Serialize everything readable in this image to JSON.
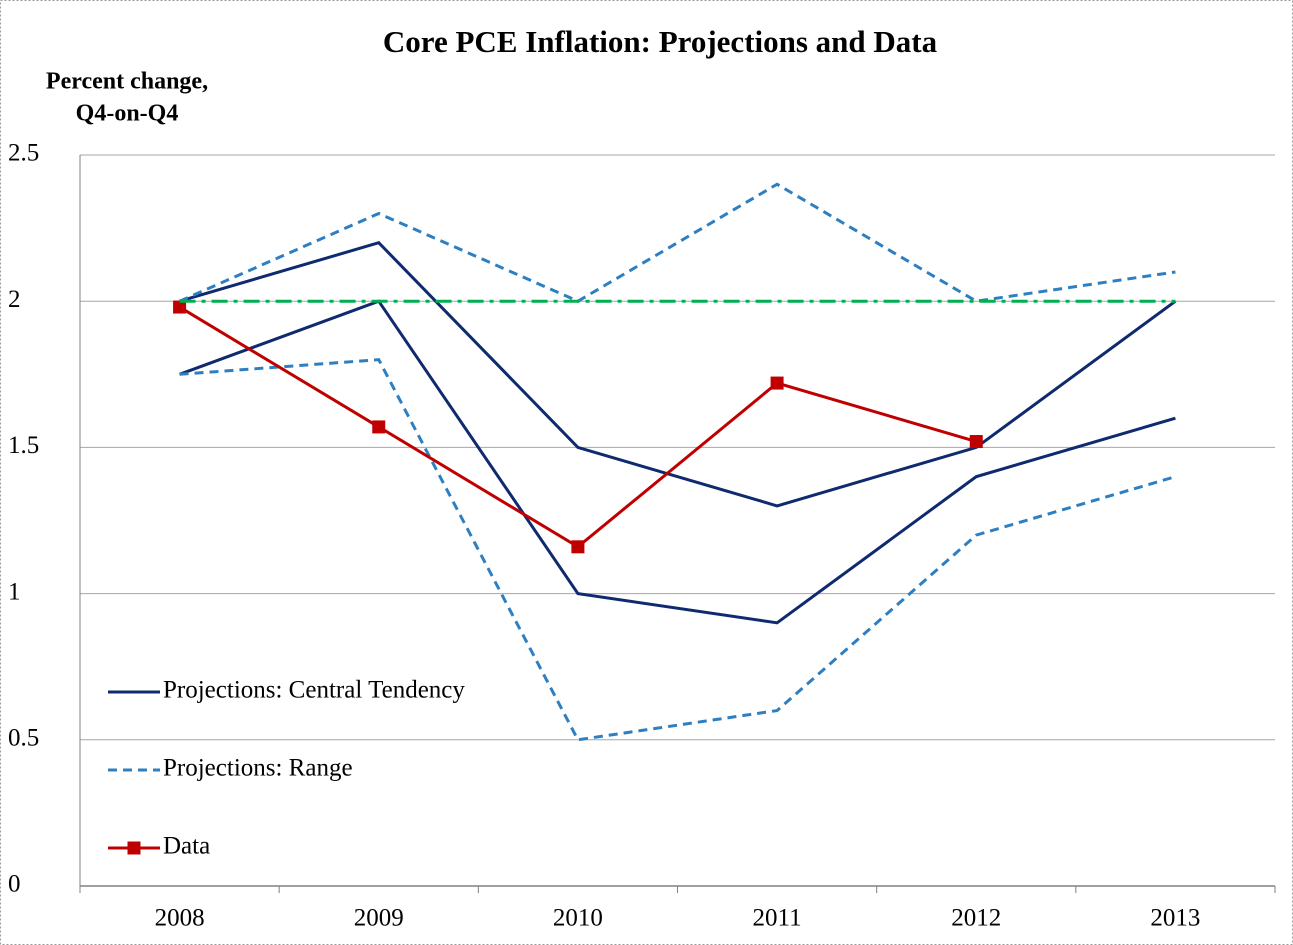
{
  "chart_data": {
    "type": "line",
    "title": "Core PCE Inflation: Projections and Data",
    "y_label": [
      "Percent change,",
      "Q4-on-Q4"
    ],
    "categories": [
      "2008",
      "2009",
      "2010",
      "2011",
      "2012",
      "2013"
    ],
    "ylim": [
      0,
      2.5
    ],
    "yticks": [
      0,
      0.5,
      1,
      1.5,
      2,
      2.5
    ],
    "grid": true,
    "legend": "lower left",
    "series": [
      {
        "name": "Projections: Central Tendency",
        "color": "#0f2a6e",
        "style": "solid",
        "values": [
          2.0,
          2.2,
          1.5,
          1.3,
          1.5,
          2.0
        ]
      },
      {
        "name": "Projections: Central Tendency",
        "color": "#0f2a6e",
        "style": "solid",
        "values": [
          1.75,
          2.0,
          1.0,
          0.9,
          1.4,
          1.6
        ]
      },
      {
        "name": "Projections: Range",
        "color": "#2e7fc1",
        "style": "dashed",
        "values": [
          2.0,
          2.3,
          2.0,
          2.4,
          2.0,
          2.1
        ]
      },
      {
        "name": "Projections: Range",
        "color": "#2e7fc1",
        "style": "dashed",
        "values": [
          1.75,
          1.8,
          0.5,
          0.6,
          1.2,
          1.4
        ]
      },
      {
        "name": "Data",
        "color": "#c00000",
        "style": "solid",
        "marker": "square",
        "values": [
          1.98,
          1.57,
          1.16,
          1.72,
          1.52,
          null
        ]
      },
      {
        "color": "#00b050",
        "style": "dashdot",
        "values": [
          2.0,
          2.0,
          2.0,
          2.0,
          2.0,
          2.0
        ]
      }
    ]
  }
}
